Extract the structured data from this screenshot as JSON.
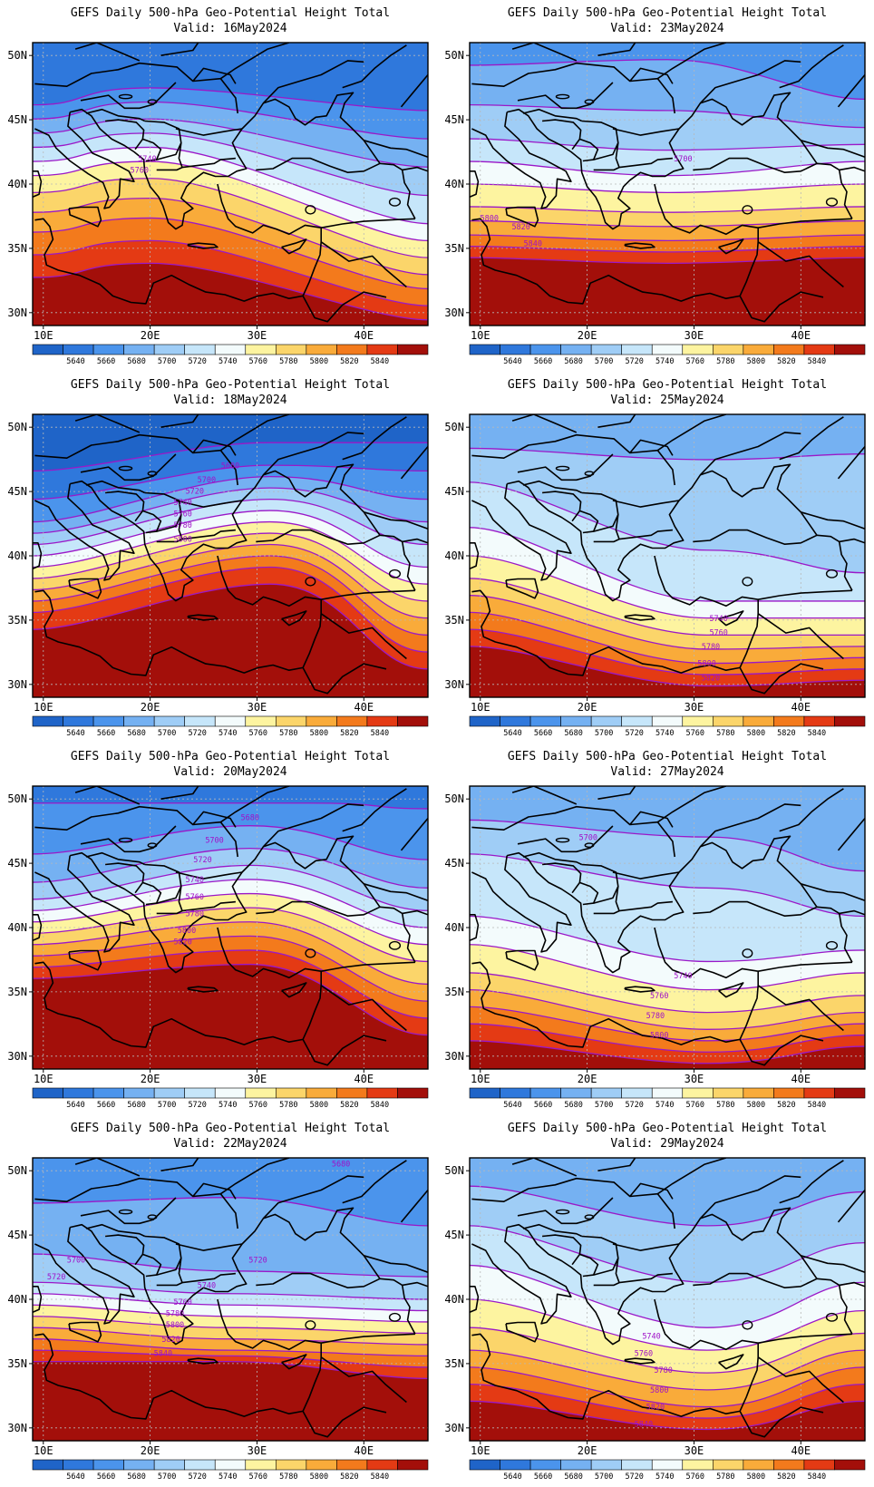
{
  "panel_title": "GEFS Daily 500-hPa Geo-Potential Height Total",
  "valid_prefix": "Valid:",
  "lat_labels": [
    "50N",
    "45N",
    "40N",
    "35N",
    "30N"
  ],
  "lon_labels": [
    "10E",
    "20E",
    "30E",
    "40E"
  ],
  "colorbar": {
    "colors": [
      "#1f64c8",
      "#2f78dc",
      "#4b94ec",
      "#75b1f2",
      "#9fcdf6",
      "#c6e6fa",
      "#f3fbfc",
      "#fdf4a0",
      "#fbd56a",
      "#f9ab3a",
      "#f37a1c",
      "#e43a14",
      "#a30f0a"
    ],
    "labels": [
      "5640",
      "5660",
      "5680",
      "5700",
      "5720",
      "5740",
      "5760",
      "5780",
      "5800",
      "5820",
      "5840"
    ]
  },
  "panels": [
    {
      "date": "16May2024",
      "contour_labels": [
        "5740",
        "5760"
      ]
    },
    {
      "date": "23May2024",
      "contour_labels": [
        "5700",
        "5800",
        "5820",
        "5840"
      ]
    },
    {
      "date": "18May2024",
      "contour_labels": [
        "5680",
        "5700",
        "5720",
        "5740",
        "5760",
        "5780",
        "5800"
      ]
    },
    {
      "date": "25May2024",
      "contour_labels": [
        "5740",
        "5760",
        "5780",
        "5800",
        "5820"
      ]
    },
    {
      "date": "20May2024",
      "contour_labels": [
        "5680",
        "5700",
        "5720",
        "5740",
        "5760",
        "5780",
        "5800",
        "5820"
      ]
    },
    {
      "date": "27May2024",
      "contour_labels": [
        "5700",
        "5740",
        "5760",
        "5780",
        "5800"
      ]
    },
    {
      "date": "22May2024",
      "contour_labels": [
        "5680",
        "5700",
        "5720",
        "5720",
        "5740",
        "5760",
        "5780",
        "5800",
        "5820",
        "5840"
      ]
    },
    {
      "date": "29May2024",
      "contour_labels": [
        "5740",
        "5760",
        "5780",
        "5800",
        "5820",
        "5840"
      ]
    }
  ]
}
